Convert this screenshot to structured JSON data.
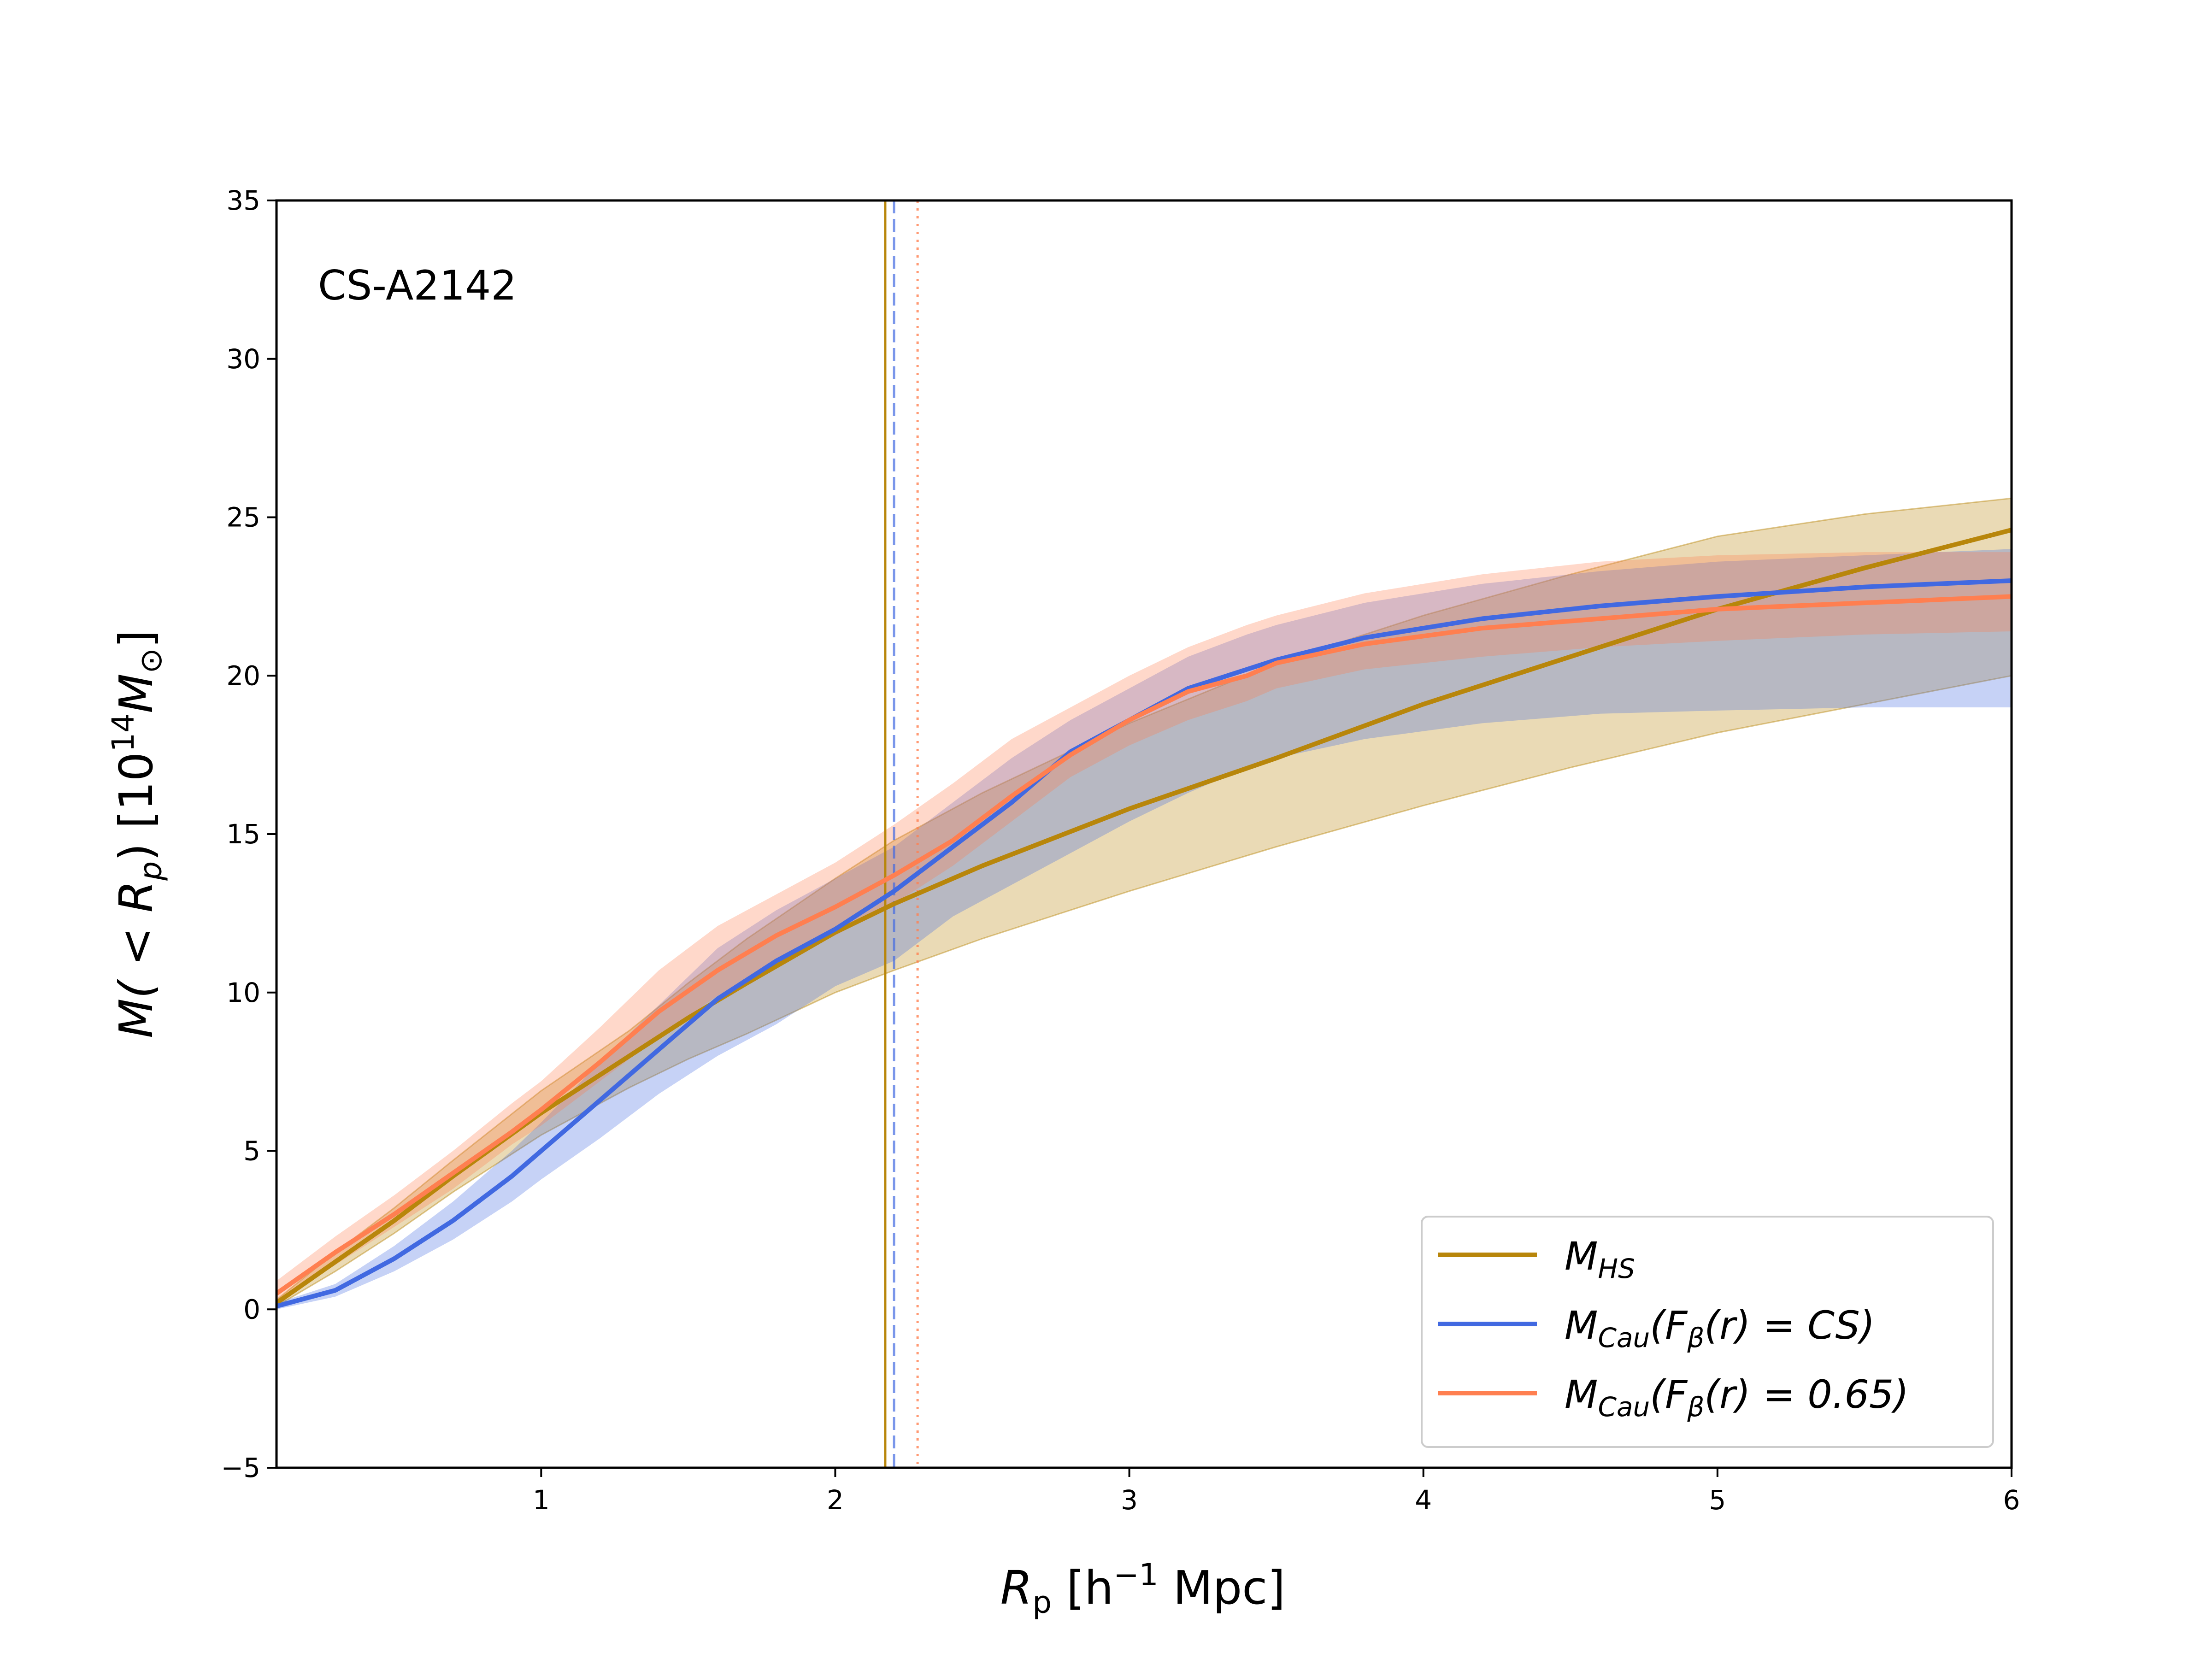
{
  "chart_data": {
    "type": "line",
    "annotation": "CS-A2142",
    "xlabel": {
      "main": "R",
      "sub": "p",
      "rest": " [h",
      "sup": "−1",
      "tail": " Mpc]"
    },
    "ylabel": {
      "a": "M( < R",
      "sub": "p",
      "b": ") [10",
      "sup": "14",
      "c": "M",
      "sub2": "⊙",
      "d": "]"
    },
    "xlim": [
      0.1,
      6
    ],
    "ylim": [
      -5,
      35
    ],
    "x_ticks": [
      1,
      2,
      3,
      4,
      5,
      6
    ],
    "x_tick_labels": [
      "1",
      "2",
      "3",
      "4",
      "5",
      "6"
    ],
    "y_ticks": [
      -5,
      0,
      5,
      10,
      15,
      20,
      25,
      30,
      35
    ],
    "y_tick_labels": [
      "−5",
      "0",
      "5",
      "10",
      "15",
      "20",
      "25",
      "30",
      "35"
    ],
    "colors": {
      "hs": "#b8860b",
      "cs": "#4169e1",
      "c065": "#ff7f50"
    },
    "vlines": [
      {
        "name": "vline-hs",
        "x": 2.17,
        "color": "#b8860b",
        "style": "solid"
      },
      {
        "name": "vline-cs",
        "x": 2.2,
        "color": "#4169e1",
        "style": "dashed"
      },
      {
        "name": "vline-c065",
        "x": 2.28,
        "color": "#ff7f50",
        "style": "dotted"
      }
    ],
    "series": [
      {
        "name": "M_HS",
        "key": "hs",
        "x": [
          0.1,
          0.3,
          0.5,
          0.7,
          1.0,
          1.3,
          1.5,
          1.7,
          2.0,
          2.2,
          2.5,
          3.0,
          3.5,
          4.0,
          4.5,
          5.0,
          5.5,
          6.0
        ],
        "y": [
          0.2,
          1.5,
          2.8,
          4.2,
          6.2,
          8.0,
          9.2,
          10.3,
          11.9,
          12.8,
          14.0,
          15.8,
          17.4,
          19.1,
          20.6,
          22.1,
          23.4,
          24.6
        ],
        "band_lower": [
          0.1,
          1.2,
          2.4,
          3.7,
          5.5,
          7.0,
          7.9,
          8.7,
          10.0,
          10.7,
          11.7,
          13.2,
          14.6,
          15.9,
          17.1,
          18.2,
          19.1,
          20.0
        ],
        "band_upper": [
          0.3,
          1.8,
          3.2,
          4.7,
          6.9,
          8.8,
          10.3,
          11.7,
          13.6,
          14.8,
          16.3,
          18.5,
          20.4,
          21.9,
          23.2,
          24.4,
          25.1,
          25.6
        ]
      },
      {
        "name": "M_Cau(F_β(r)=CS)",
        "key": "cs",
        "x": [
          0.1,
          0.3,
          0.5,
          0.7,
          0.9,
          1.0,
          1.2,
          1.4,
          1.6,
          1.8,
          2.0,
          2.2,
          2.4,
          2.6,
          2.8,
          3.0,
          3.2,
          3.4,
          3.5,
          3.8,
          4.2,
          4.6,
          5.0,
          5.5,
          6.0
        ],
        "y": [
          0.1,
          0.6,
          1.6,
          2.8,
          4.2,
          5.0,
          6.6,
          8.2,
          9.8,
          11.0,
          12.0,
          13.2,
          14.6,
          16.0,
          17.6,
          18.6,
          19.6,
          20.2,
          20.5,
          21.2,
          21.8,
          22.2,
          22.5,
          22.8,
          23.0
        ],
        "band_lower": [
          0.0,
          0.4,
          1.2,
          2.2,
          3.4,
          4.1,
          5.4,
          6.8,
          8.0,
          9.0,
          10.2,
          11.0,
          12.4,
          13.4,
          14.4,
          15.4,
          16.3,
          17.1,
          17.4,
          18.0,
          18.5,
          18.8,
          18.9,
          19.0,
          19.0
        ],
        "band_upper": [
          0.2,
          0.8,
          2.0,
          3.4,
          5.0,
          5.9,
          7.8,
          9.6,
          11.4,
          12.6,
          13.6,
          14.6,
          16.0,
          17.4,
          18.6,
          19.6,
          20.6,
          21.3,
          21.6,
          22.3,
          22.9,
          23.3,
          23.6,
          23.8,
          24.0
        ]
      },
      {
        "name": "M_Cau(F_β(r)=0.65)",
        "key": "c065",
        "x": [
          0.1,
          0.3,
          0.5,
          0.7,
          0.9,
          1.0,
          1.2,
          1.4,
          1.6,
          1.8,
          2.0,
          2.2,
          2.4,
          2.6,
          2.8,
          3.0,
          3.2,
          3.4,
          3.5,
          3.8,
          4.2,
          4.6,
          5.0,
          5.5,
          6.0
        ],
        "y": [
          0.5,
          1.8,
          3.0,
          4.3,
          5.6,
          6.3,
          7.8,
          9.4,
          10.7,
          11.8,
          12.7,
          13.7,
          14.8,
          16.2,
          17.5,
          18.6,
          19.5,
          20.0,
          20.4,
          21.0,
          21.5,
          21.8,
          22.1,
          22.3,
          22.5
        ],
        "band_lower": [
          0.2,
          1.4,
          2.6,
          3.8,
          5.2,
          5.8,
          7.2,
          8.6,
          9.9,
          10.9,
          11.8,
          12.8,
          14.0,
          15.4,
          16.8,
          17.8,
          18.6,
          19.2,
          19.6,
          20.2,
          20.6,
          20.9,
          21.1,
          21.3,
          21.4
        ],
        "band_upper": [
          0.9,
          2.3,
          3.6,
          5.0,
          6.5,
          7.2,
          8.9,
          10.7,
          12.1,
          13.1,
          14.1,
          15.3,
          16.6,
          18.0,
          19.0,
          20.0,
          20.9,
          21.6,
          21.9,
          22.6,
          23.2,
          23.6,
          23.8,
          23.9,
          23.9
        ]
      }
    ],
    "legend": {
      "placement": "lower-right",
      "entries": [
        {
          "key": "hs",
          "base": "M",
          "sub": "HS",
          "rest": ""
        },
        {
          "key": "cs",
          "base": "M",
          "sub": "Cau",
          "rest": "(F",
          "sub2": "β",
          "rest2": "(r) = CS)"
        },
        {
          "key": "c065",
          "base": "M",
          "sub": "Cau",
          "rest": "(F",
          "sub2": "β",
          "rest2": "(r) = 0.65)"
        }
      ]
    }
  }
}
